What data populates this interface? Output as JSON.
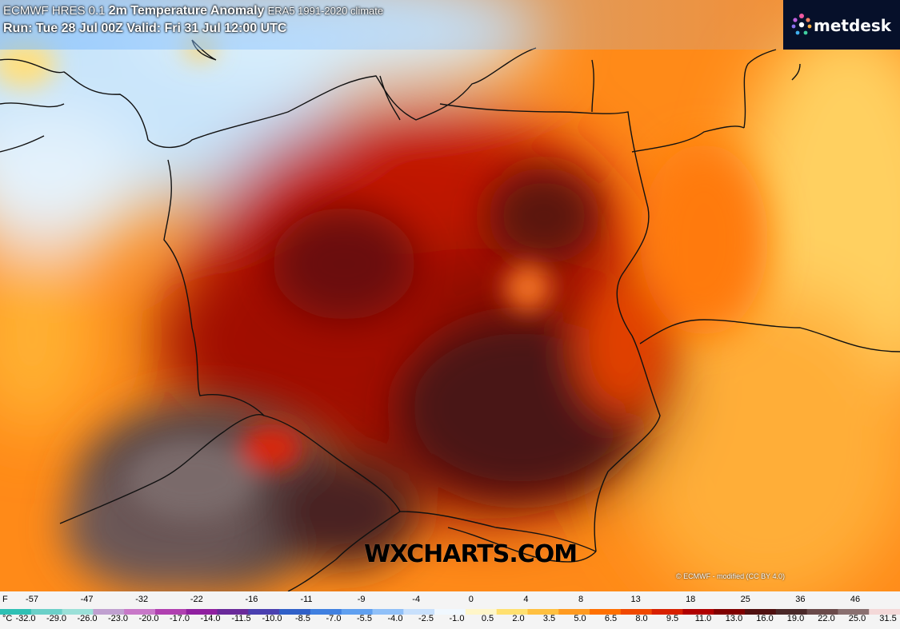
{
  "header": {
    "model": "ECMWF HRES 0.1",
    "product": "2m Temperature Anomaly",
    "climate": "ERA5 1991-2020 climate",
    "run": "Run: Tue 28 Jul 00Z Valid: Fri 31 Jul 12:00 UTC"
  },
  "logo": {
    "text": "metdesk",
    "icon": "metdesk-logo-icon"
  },
  "watermark": "WXCHARTS.COM",
  "credit": "© ECMWF - modified (CC BY 4.0)",
  "legend": {
    "f_unit": "F",
    "f_ticks": [
      "-57",
      "-47",
      "-32",
      "-22",
      "-16",
      "-11",
      "-9",
      "-4",
      "0",
      "4",
      "8",
      "13",
      "18",
      "25",
      "36",
      "46"
    ],
    "c_unit": "°C",
    "c_ticks": [
      "-32.0",
      "-29.0",
      "-26.0",
      "-23.0",
      "-20.0",
      "-17.0",
      "-14.0",
      "-11.5",
      "-10.0",
      "-8.5",
      "-7.0",
      "-5.5",
      "-4.0",
      "-2.5",
      "-1.0",
      "0.5",
      "2.0",
      "3.5",
      "5.0",
      "6.5",
      "8.0",
      "9.5",
      "11.0",
      "13.0",
      "16.0",
      "19.0",
      "22.0",
      "25.0",
      "31.5"
    ],
    "colors": [
      "#2fc0b4",
      "#6bd0c8",
      "#9be0d8",
      "#c0a0d0",
      "#c878c8",
      "#b040b0",
      "#9020a0",
      "#6a2a9a",
      "#4a40b0",
      "#3060c8",
      "#4080e0",
      "#60a0f0",
      "#90c0f8",
      "#c8e0fc",
      "#f0f8ff",
      "#fff6c8",
      "#ffe070",
      "#ffc040",
      "#ff9a20",
      "#ff7000",
      "#f04800",
      "#d82000",
      "#b00000",
      "#800000",
      "#501010",
      "#4a2828",
      "#6a4a4a",
      "#8a7070",
      "#f4d8d8"
    ]
  },
  "map": {
    "region": "Poland and surrounding region",
    "colors": {
      "cold": "#bfe0f8",
      "warm": "#ff9a20",
      "hot": "#c81800",
      "extreme": "#4a1e1e"
    }
  }
}
